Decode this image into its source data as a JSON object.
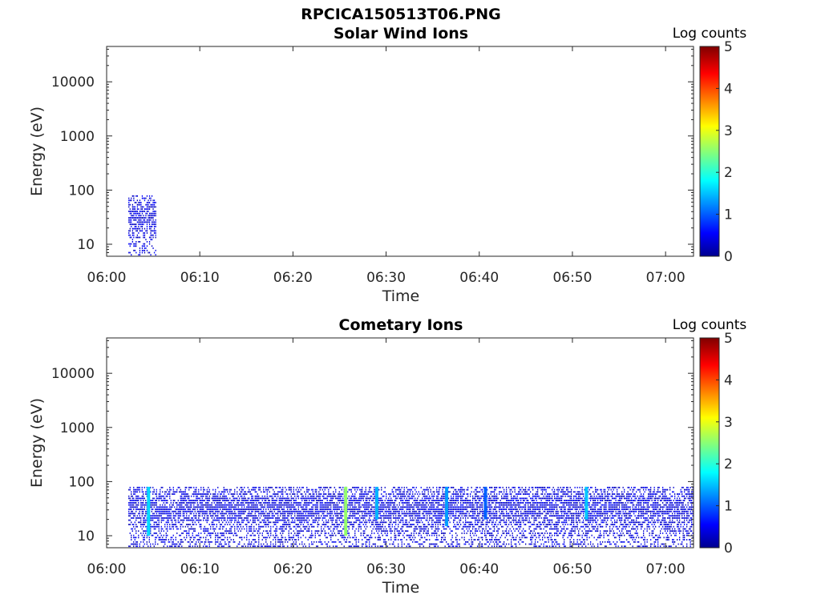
{
  "figure": {
    "title": "RPCICA150513T06.PNG"
  },
  "chart_data": [
    {
      "type": "heatmap",
      "title": "Solar Wind Ions",
      "xlabel": "Time",
      "ylabel": "Energy (eV)",
      "y_scale": "log",
      "ylim": [
        6,
        45000
      ],
      "xlim": [
        "06:00",
        "07:03"
      ],
      "x_ticks": [
        "06:00",
        "06:10",
        "06:20",
        "06:30",
        "06:40",
        "06:50",
        "07:00"
      ],
      "y_ticks": [
        "10",
        "100",
        "1000",
        "10000"
      ],
      "colorbar": {
        "label": "Log counts",
        "range": [
          0,
          5
        ],
        "ticks": [
          "0",
          "1",
          "2",
          "3",
          "4",
          "5"
        ],
        "colormap": "jet"
      },
      "events": [
        {
          "start": "06:02:20",
          "end": "06:05:20",
          "energy_min": 6,
          "energy_max": 80,
          "log_counts": 0.4
        }
      ]
    },
    {
      "type": "heatmap",
      "title": "Cometary Ions",
      "xlabel": "Time",
      "ylabel": "Energy (eV)",
      "y_scale": "log",
      "ylim": [
        6,
        45000
      ],
      "xlim": [
        "06:00",
        "07:03"
      ],
      "x_ticks": [
        "06:00",
        "06:10",
        "06:20",
        "06:30",
        "06:40",
        "06:50",
        "07:00"
      ],
      "y_ticks": [
        "10",
        "100",
        "1000",
        "10000"
      ],
      "colorbar": {
        "label": "Log counts",
        "range": [
          0,
          5
        ],
        "ticks": [
          "0",
          "1",
          "2",
          "3",
          "4",
          "5"
        ],
        "colormap": "jet"
      },
      "events": [
        {
          "start": "06:02:20",
          "end": "07:03:00",
          "energy_min": 6,
          "energy_max": 80,
          "log_counts": 0.4
        }
      ],
      "bursts": [
        {
          "time": "06:04:30",
          "energy_min": 10,
          "energy_max": 80,
          "log_counts": 1.7
        },
        {
          "time": "06:25:40",
          "energy_min": 10,
          "energy_max": 80,
          "log_counts": 2.6
        },
        {
          "time": "06:29:00",
          "energy_min": 20,
          "energy_max": 80,
          "log_counts": 1.5
        },
        {
          "time": "06:36:30",
          "energy_min": 15,
          "energy_max": 80,
          "log_counts": 1.4
        },
        {
          "time": "06:40:40",
          "energy_min": 20,
          "energy_max": 80,
          "log_counts": 1.1
        },
        {
          "time": "06:51:30",
          "energy_min": 20,
          "energy_max": 80,
          "log_counts": 1.6
        }
      ]
    }
  ]
}
